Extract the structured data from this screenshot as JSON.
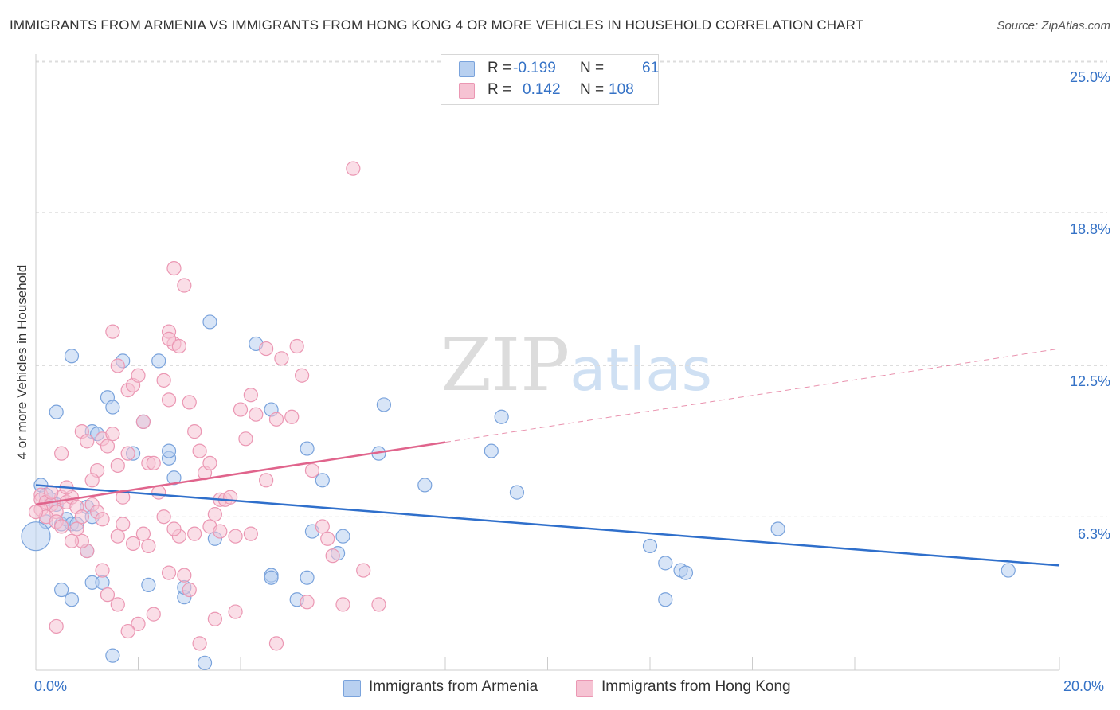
{
  "header": {
    "title": "IMMIGRANTS FROM ARMENIA VS IMMIGRANTS FROM HONG KONG 4 OR MORE VEHICLES IN HOUSEHOLD CORRELATION CHART",
    "source": "Source: ZipAtlas.com"
  },
  "watermark": {
    "zip": "ZIP",
    "atlas": "atlas"
  },
  "colors": {
    "armenia_fill": "#b8d0f0",
    "armenia_stroke": "#7aa3dc",
    "armenia_line": "#2f6fcb",
    "hongkong_fill": "#f6c3d3",
    "hongkong_stroke": "#eb97b3",
    "hongkong_line": "#e0648c",
    "tick_label": "#3572c6",
    "grid": "#dddddd"
  },
  "legend": {
    "rows": [
      {
        "r_label": "R =",
        "r_value": "-0.199",
        "n_label": "N =",
        "n_value": "61"
      },
      {
        "r_label": "R =",
        "r_value": "0.142",
        "n_label": "N =",
        "n_value": "108"
      }
    ]
  },
  "chart_data": {
    "type": "scatter",
    "xlabel": "",
    "ylabel": "4 or more Vehicles in Household",
    "xlim": [
      0,
      20
    ],
    "ylim": [
      0,
      26
    ],
    "x_tick_labels": [
      "0.0%",
      "20.0%"
    ],
    "y_ticks": [
      {
        "value": 6.3,
        "label": "6.3%"
      },
      {
        "value": 12.5,
        "label": "12.5%"
      },
      {
        "value": 18.8,
        "label": "18.8%"
      },
      {
        "value": 25.0,
        "label": "25.0%"
      }
    ],
    "grid": "horizontal dashed",
    "legend_position": "top-center",
    "series": [
      {
        "name": "Immigrants from Armenia",
        "trend": {
          "x": [
            0,
            20
          ],
          "y": [
            7.6,
            4.3
          ],
          "dashed_from": null
        },
        "points": [
          [
            0.1,
            7.6
          ],
          [
            0.2,
            7.2
          ],
          [
            0.3,
            7.0
          ],
          [
            0.4,
            6.8
          ],
          [
            0.2,
            6.1
          ],
          [
            0.5,
            6.0
          ],
          [
            0.6,
            6.2
          ],
          [
            0.7,
            6.0
          ],
          [
            0.4,
            10.6
          ],
          [
            0.7,
            12.9
          ],
          [
            1.1,
            9.8
          ],
          [
            1.2,
            9.7
          ],
          [
            1.4,
            11.2
          ],
          [
            1.5,
            10.8
          ],
          [
            1.7,
            12.7
          ],
          [
            1.9,
            8.9
          ],
          [
            2.1,
            10.2
          ],
          [
            2.4,
            12.7
          ],
          [
            2.6,
            8.7
          ],
          [
            2.7,
            7.9
          ],
          [
            2.6,
            9.0
          ],
          [
            3.4,
            14.3
          ],
          [
            4.3,
            13.4
          ],
          [
            4.6,
            10.7
          ],
          [
            5.3,
            9.1
          ],
          [
            5.6,
            7.8
          ],
          [
            5.4,
            5.7
          ],
          [
            5.9,
            4.8
          ],
          [
            6.0,
            5.5
          ],
          [
            6.7,
            8.9
          ],
          [
            6.8,
            10.9
          ],
          [
            4.6,
            3.9
          ],
          [
            3.5,
            5.4
          ],
          [
            2.2,
            3.5
          ],
          [
            2.9,
            3.0
          ],
          [
            2.9,
            3.4
          ],
          [
            1.0,
            4.9
          ],
          [
            0.5,
            3.3
          ],
          [
            0.7,
            2.9
          ],
          [
            1.1,
            3.6
          ],
          [
            1.3,
            3.6
          ],
          [
            1.5,
            0.6
          ],
          [
            3.3,
            0.3
          ],
          [
            4.6,
            3.8
          ],
          [
            5.1,
            2.9
          ],
          [
            5.3,
            3.8
          ],
          [
            9.1,
            10.4
          ],
          [
            8.9,
            9.0
          ],
          [
            7.6,
            7.6
          ],
          [
            9.4,
            7.3
          ],
          [
            12.0,
            5.1
          ],
          [
            12.3,
            4.4
          ],
          [
            12.3,
            2.9
          ],
          [
            12.6,
            4.1
          ],
          [
            12.7,
            4.0
          ],
          [
            14.5,
            5.8
          ],
          [
            19.0,
            4.1
          ],
          [
            0.0,
            5.5
          ],
          [
            1.0,
            6.7
          ],
          [
            1.1,
            6.3
          ],
          [
            0.8,
            6.0
          ]
        ]
      },
      {
        "name": "Immigrants from Hong Kong",
        "trend": {
          "x": [
            0,
            20
          ],
          "y": [
            6.8,
            13.2
          ],
          "dashed_from": 8
        },
        "points": [
          [
            0.1,
            7.2
          ],
          [
            0.1,
            7.0
          ],
          [
            0.2,
            6.9
          ],
          [
            0.3,
            6.8
          ],
          [
            0.1,
            6.6
          ],
          [
            0.4,
            6.5
          ],
          [
            0.2,
            6.3
          ],
          [
            0.5,
            7.1
          ],
          [
            0.6,
            6.9
          ],
          [
            0.3,
            7.3
          ],
          [
            0.7,
            7.1
          ],
          [
            0.8,
            6.7
          ],
          [
            0.4,
            6.1
          ],
          [
            0.0,
            6.5
          ],
          [
            0.5,
            8.9
          ],
          [
            0.6,
            7.5
          ],
          [
            0.9,
            9.8
          ],
          [
            1.0,
            9.4
          ],
          [
            1.2,
            8.2
          ],
          [
            1.1,
            7.8
          ],
          [
            1.3,
            9.5
          ],
          [
            1.4,
            9.2
          ],
          [
            1.6,
            8.4
          ],
          [
            1.5,
            9.7
          ],
          [
            1.8,
            8.9
          ],
          [
            1.5,
            13.9
          ],
          [
            1.6,
            12.5
          ],
          [
            1.8,
            11.5
          ],
          [
            1.9,
            11.7
          ],
          [
            2.0,
            12.1
          ],
          [
            2.1,
            10.2
          ],
          [
            2.2,
            8.5
          ],
          [
            2.3,
            8.5
          ],
          [
            2.4,
            7.3
          ],
          [
            2.5,
            11.9
          ],
          [
            2.6,
            11.1
          ],
          [
            2.6,
            13.9
          ],
          [
            2.7,
            13.4
          ],
          [
            2.6,
            13.6
          ],
          [
            2.8,
            13.3
          ],
          [
            2.7,
            16.5
          ],
          [
            2.9,
            15.8
          ],
          [
            3.0,
            11.0
          ],
          [
            3.1,
            9.8
          ],
          [
            3.2,
            9.0
          ],
          [
            3.3,
            8.1
          ],
          [
            3.4,
            8.5
          ],
          [
            3.5,
            6.4
          ],
          [
            3.6,
            7.0
          ],
          [
            3.7,
            7.0
          ],
          [
            3.8,
            7.1
          ],
          [
            4.0,
            10.7
          ],
          [
            4.1,
            9.5
          ],
          [
            4.2,
            11.3
          ],
          [
            4.3,
            10.5
          ],
          [
            4.5,
            7.8
          ],
          [
            4.5,
            13.2
          ],
          [
            4.7,
            10.3
          ],
          [
            4.8,
            12.8
          ],
          [
            5.0,
            10.4
          ],
          [
            5.1,
            13.3
          ],
          [
            5.2,
            12.1
          ],
          [
            5.4,
            8.2
          ],
          [
            5.6,
            5.9
          ],
          [
            5.7,
            5.4
          ],
          [
            5.8,
            4.7
          ],
          [
            6.0,
            2.7
          ],
          [
            6.4,
            4.1
          ],
          [
            6.2,
            20.6
          ],
          [
            6.7,
            2.7
          ],
          [
            5.3,
            2.8
          ],
          [
            4.7,
            1.1
          ],
          [
            3.9,
            2.4
          ],
          [
            3.5,
            2.1
          ],
          [
            3.2,
            1.1
          ],
          [
            3.0,
            3.3
          ],
          [
            2.9,
            3.9
          ],
          [
            2.6,
            4.0
          ],
          [
            2.3,
            2.3
          ],
          [
            2.0,
            1.9
          ],
          [
            1.8,
            1.6
          ],
          [
            1.6,
            2.7
          ],
          [
            1.4,
            3.1
          ],
          [
            1.3,
            4.1
          ],
          [
            1.0,
            4.9
          ],
          [
            0.9,
            5.3
          ],
          [
            0.8,
            5.8
          ],
          [
            0.7,
            5.3
          ],
          [
            0.4,
            1.8
          ],
          [
            1.1,
            6.8
          ],
          [
            1.2,
            6.5
          ],
          [
            1.7,
            6.0
          ],
          [
            2.1,
            5.6
          ],
          [
            2.5,
            6.3
          ],
          [
            2.8,
            5.5
          ],
          [
            3.1,
            5.6
          ],
          [
            3.4,
            5.9
          ],
          [
            3.6,
            5.7
          ],
          [
            3.9,
            5.5
          ],
          [
            4.2,
            5.6
          ],
          [
            1.6,
            5.5
          ],
          [
            1.9,
            5.2
          ],
          [
            2.2,
            5.1
          ],
          [
            2.7,
            5.8
          ],
          [
            0.5,
            5.9
          ],
          [
            0.9,
            6.3
          ],
          [
            1.3,
            6.2
          ],
          [
            1.7,
            7.1
          ]
        ]
      }
    ]
  }
}
